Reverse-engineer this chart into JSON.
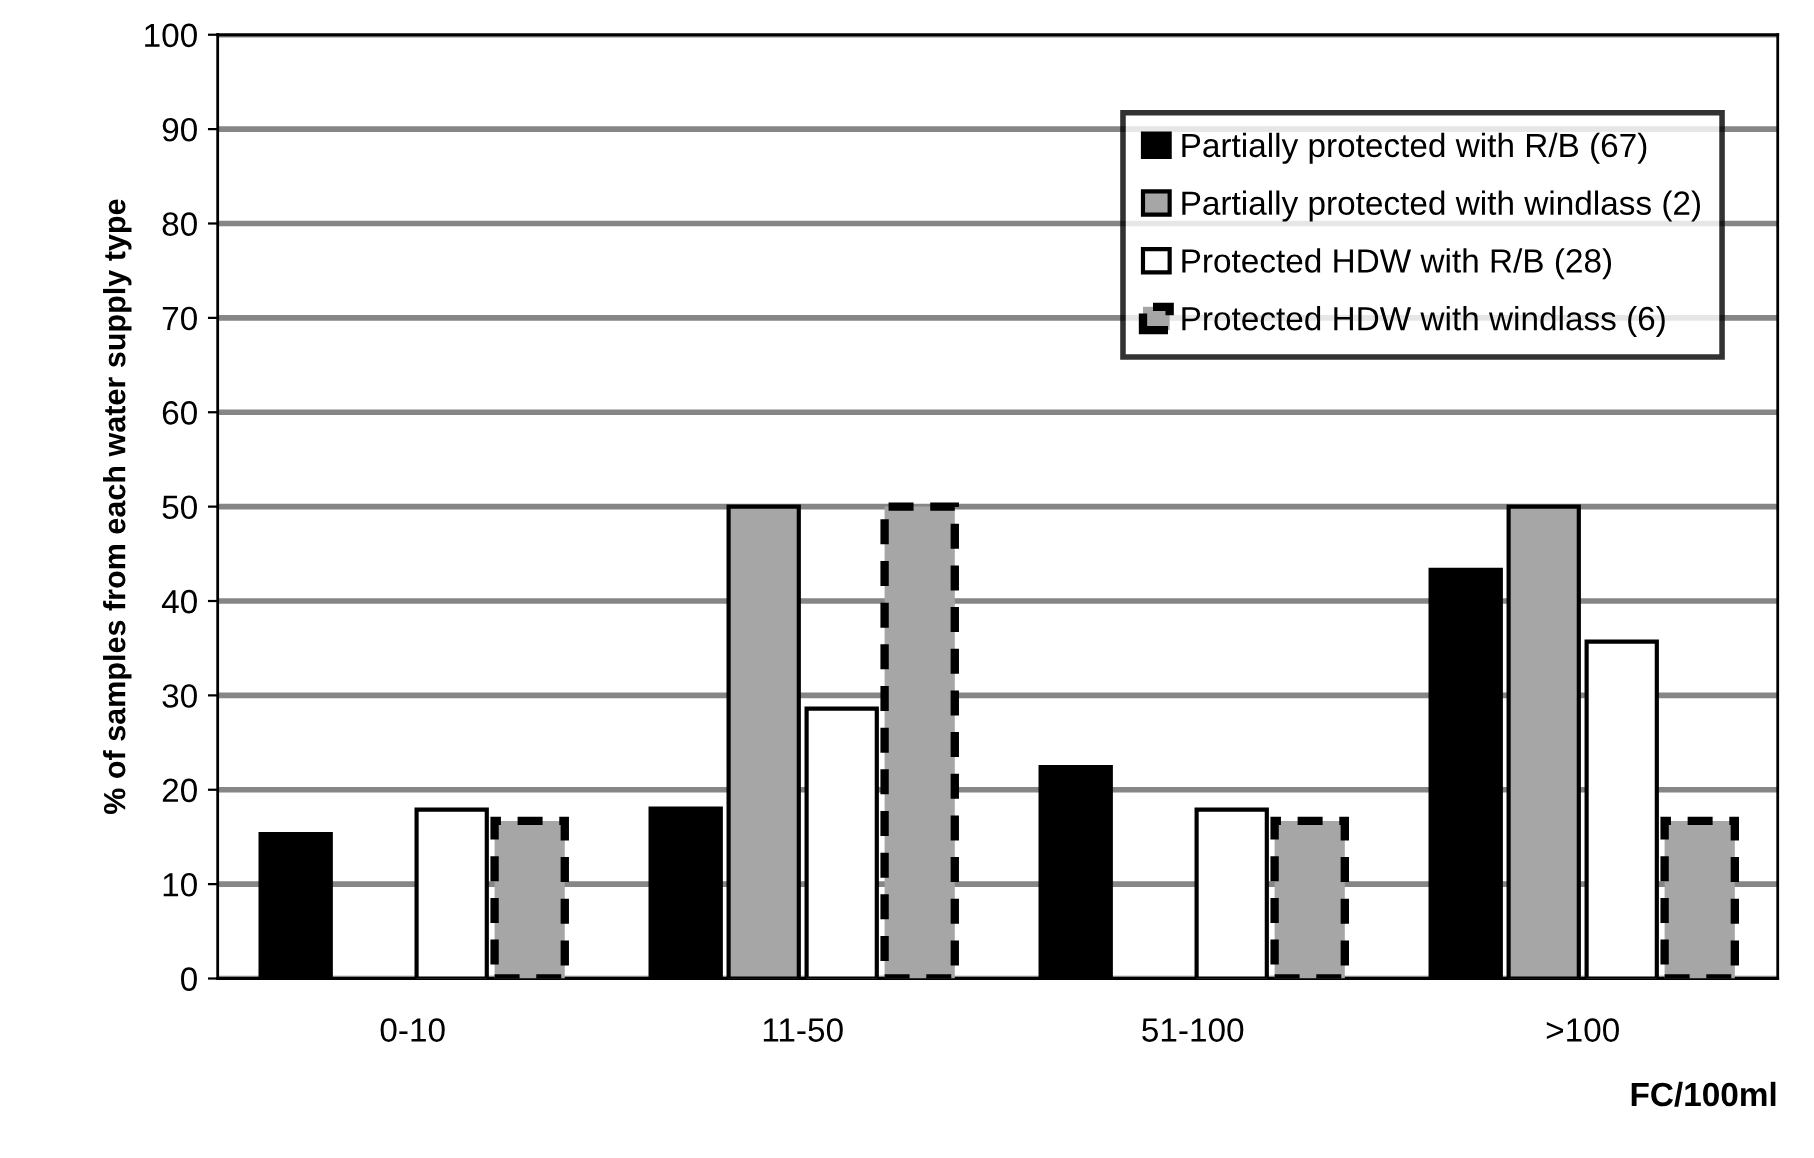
{
  "chart_data": {
    "type": "bar",
    "ylabel": "% of samples from each water supply type",
    "xlabel": "FC/100ml",
    "categories": [
      "0-10",
      "11-50",
      "51-100",
      ">100"
    ],
    "series": [
      {
        "name": "Partially protected with R/B (67)",
        "color": "#000000",
        "values": [
          15.3,
          18,
          22.4,
          43.3
        ]
      },
      {
        "name": "Partially protected with windlass (2)",
        "color": "#a6a6a6",
        "values": [
          null,
          50,
          null,
          50
        ]
      },
      {
        "name": "Protected HDW with R/B (28)",
        "color": "#ffffff",
        "values": [
          17.9,
          28.6,
          17.9,
          35.7
        ]
      },
      {
        "name": "Protected HDW with windlass (6)",
        "color": "#a6a6a6",
        "line_style": "dashed",
        "values": [
          16.7,
          50,
          16.7,
          16.7
        ]
      }
    ],
    "ylim": [
      0,
      100
    ],
    "yticks": [
      0,
      10,
      20,
      30,
      40,
      50,
      60,
      70,
      80,
      90,
      100
    ],
    "grid": "y",
    "legend": "top right"
  }
}
